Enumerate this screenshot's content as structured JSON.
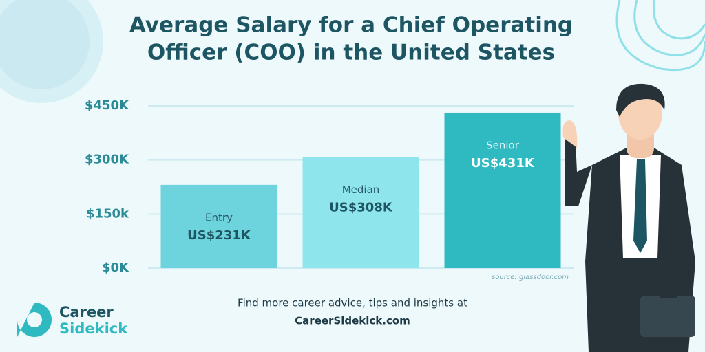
{
  "chart_data": {
    "type": "bar",
    "title": [
      "Average Salary for a Chief Operating",
      "Officer (COO) in the United States"
    ],
    "categories": [
      "Entry",
      "Median",
      "Senior"
    ],
    "values": [
      231000,
      308000,
      431000
    ],
    "value_labels": [
      "US$231K",
      "US$308K",
      "US$431K"
    ],
    "colors": [
      "#6dd3dc",
      "#8ee6ec",
      "#2fb9c0"
    ],
    "ylim": [
      0,
      450000
    ],
    "yticks": [
      {
        "value": 0,
        "label": "$0K"
      },
      {
        "value": 150000,
        "label": "$150k"
      },
      {
        "value": 300000,
        "label": "$300K"
      },
      {
        "value": 450000,
        "label": "$450K"
      }
    ],
    "grid": true,
    "source": "source: glassdoor.com"
  },
  "footer": {
    "line1": "Find more career advice, tips and insights at",
    "line2": "CareerSidekick.com"
  },
  "logo": {
    "line1": "Career",
    "line2": "Sidekick"
  }
}
